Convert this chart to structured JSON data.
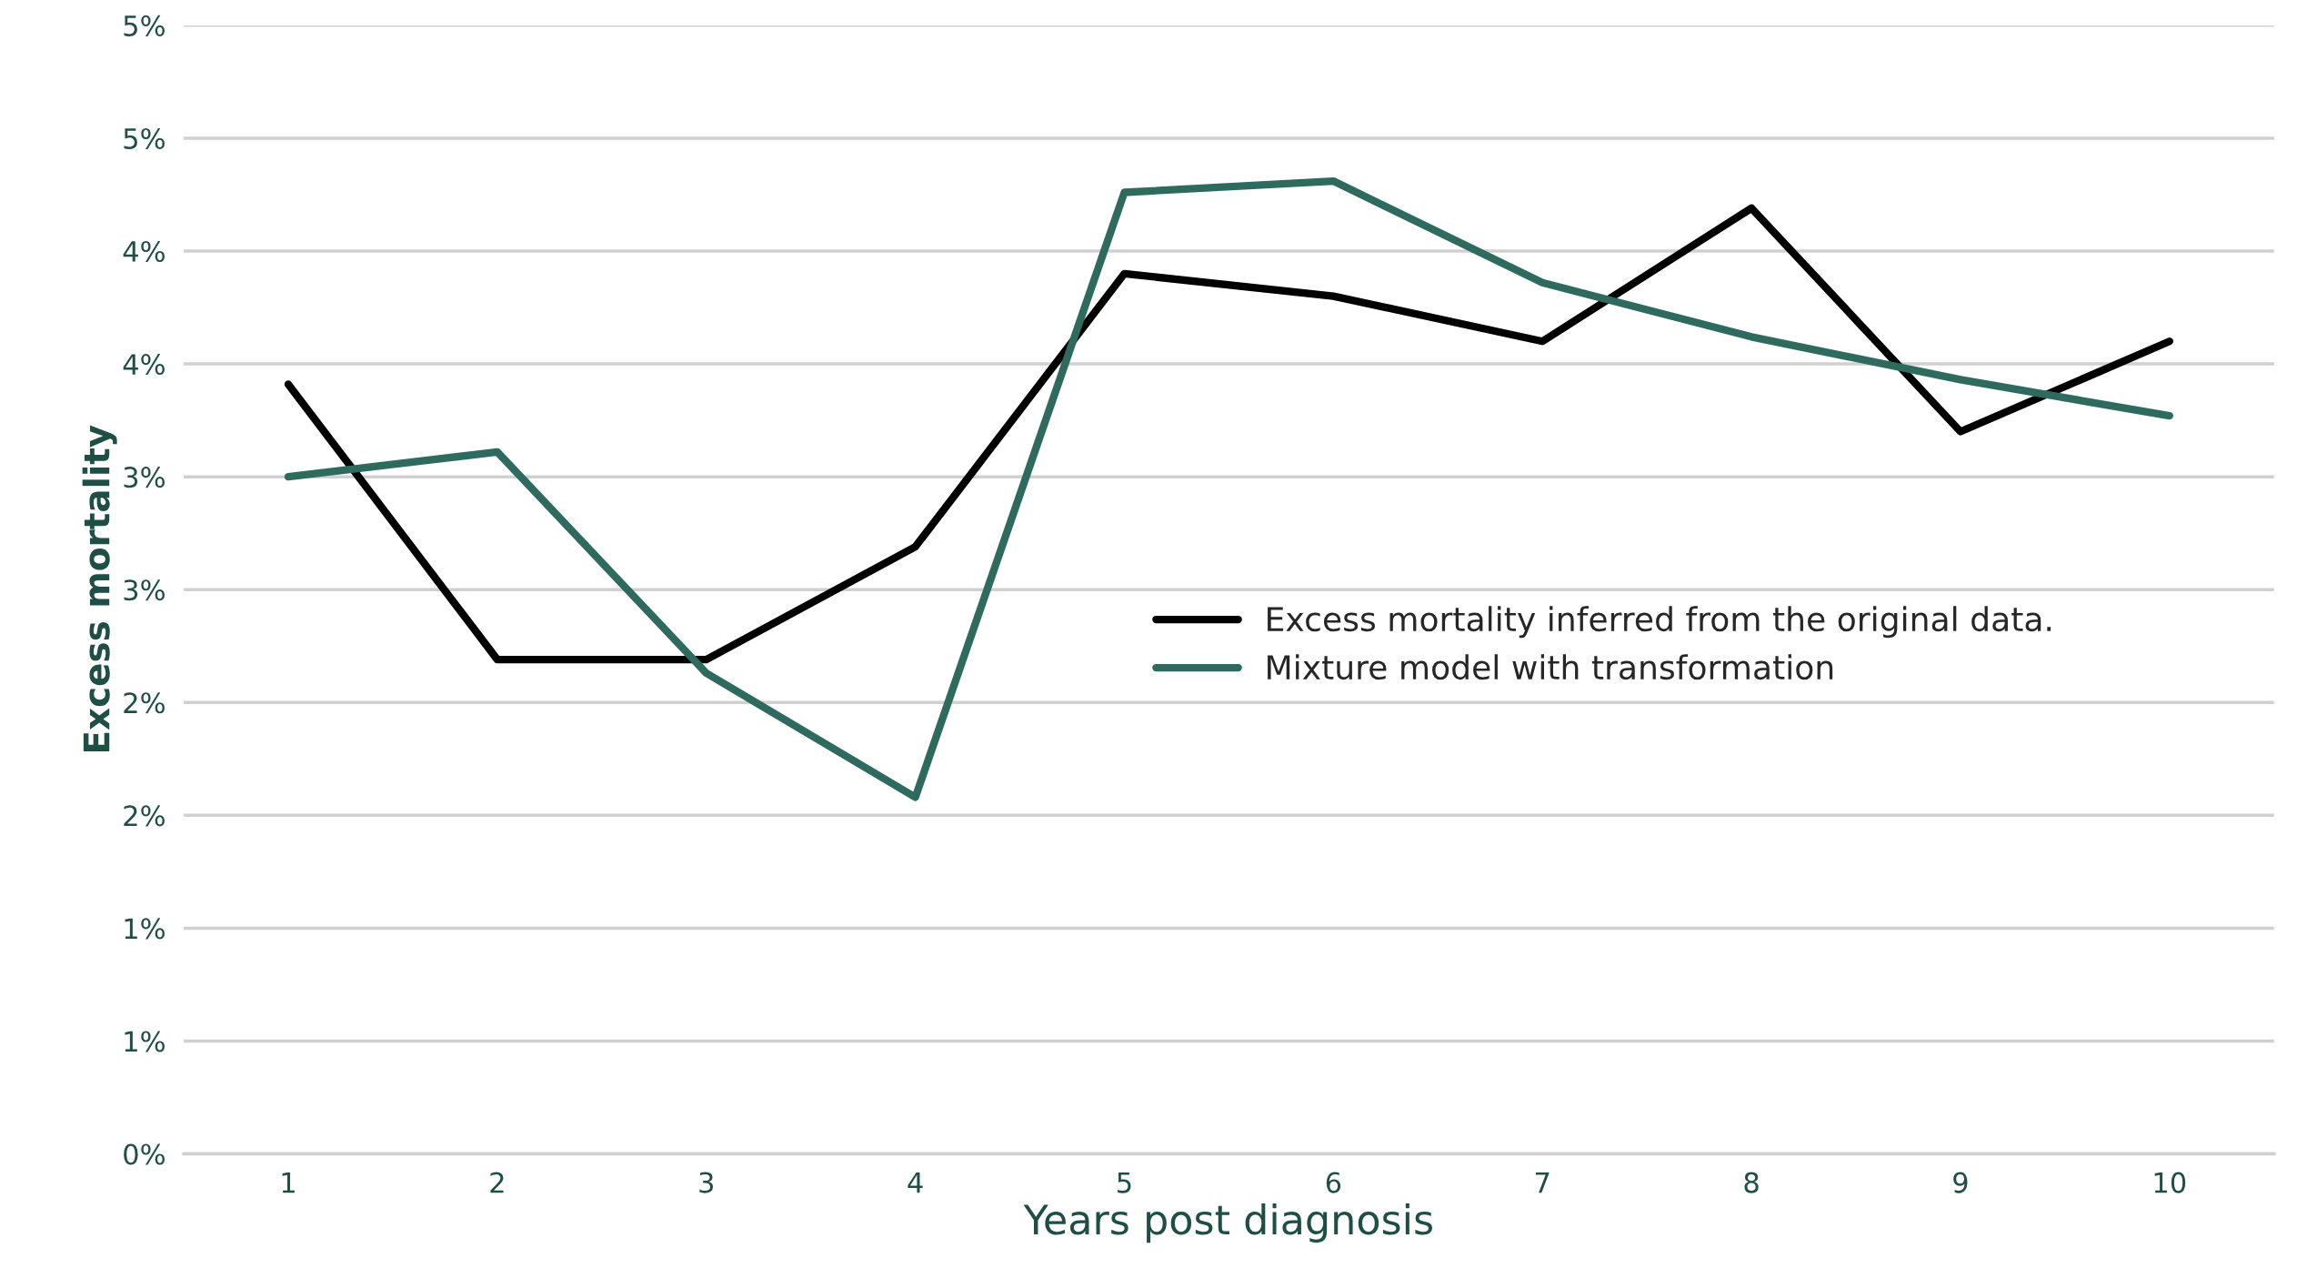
{
  "chart_data": {
    "type": "line",
    "xlabel": "Years post diagnosis",
    "ylabel": "Excess mortality",
    "categories": [
      "1",
      "2",
      "3",
      "4",
      "5",
      "6",
      "7",
      "8",
      "9",
      "10"
    ],
    "series": [
      {
        "name": "Excess mortality inferred from the original data.",
        "color": "#000000",
        "values": [
          3.41,
          2.19,
          2.19,
          2.69,
          3.9,
          3.8,
          3.6,
          4.19,
          3.2,
          3.6
        ]
      },
      {
        "name": "Mixture model with transformation",
        "color": "#2e6b5e",
        "values": [
          3.0,
          3.11,
          2.13,
          1.58,
          4.26,
          4.31,
          3.86,
          3.62,
          3.43,
          3.27
        ]
      }
    ],
    "ylim": [
      0,
      5
    ],
    "yticks": [
      {
        "value": 0,
        "label": "0%"
      },
      {
        "value": 0.5,
        "label": "1%"
      },
      {
        "value": 1,
        "label": "1%"
      },
      {
        "value": 1.5,
        "label": "2%"
      },
      {
        "value": 2,
        "label": "2%"
      },
      {
        "value": 2.5,
        "label": "3%"
      },
      {
        "value": 3,
        "label": "3%"
      },
      {
        "value": 3.5,
        "label": "4%"
      },
      {
        "value": 4,
        "label": "4%"
      },
      {
        "value": 4.5,
        "label": "5%"
      },
      {
        "value": 5,
        "label": "5%"
      }
    ],
    "grid": "y",
    "legend": "center",
    "marker": "none",
    "line_style": "solid"
  }
}
